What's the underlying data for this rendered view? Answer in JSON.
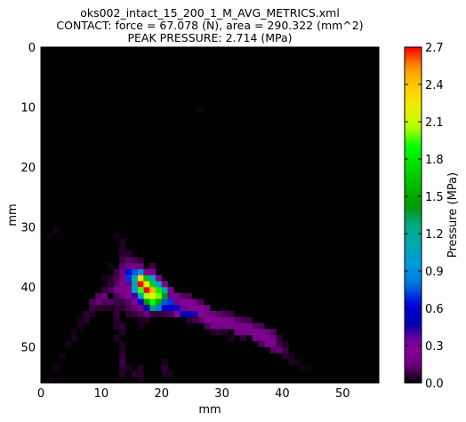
{
  "chart_data": {
    "type": "heatmap",
    "title_lines": [
      "oks002_intact_15_200_1_M_AVG_METRICS.xml",
      "CONTACT: force = 67.078 (N), area = 290.322 (mm^2)",
      "PEAK PRESSURE: 2.714 (MPa)"
    ],
    "xlabel": "mm",
    "ylabel": "mm",
    "colorbar_label": "Pressure (MPa)",
    "xlim": [
      0,
      56
    ],
    "ylim": [
      0,
      56
    ],
    "y_inverted": true,
    "x_ticks": [
      "0",
      "10",
      "20",
      "30",
      "40",
      "50"
    ],
    "y_ticks": [
      "0",
      "10",
      "20",
      "30",
      "40",
      "50"
    ],
    "colorbar_ticks": [
      "0.0",
      "0.3",
      "0.6",
      "0.9",
      "1.2",
      "1.5",
      "1.8",
      "2.1",
      "2.4",
      "2.7"
    ],
    "value_range": [
      0,
      2.7
    ],
    "colormap": "nipy_spectral",
    "grid": false,
    "cell_size_mm": 1,
    "cells": [
      [
        16,
        39,
        2.7
      ],
      [
        17,
        40,
        2.714
      ],
      [
        16,
        38,
        2.3
      ],
      [
        17,
        39,
        2.25
      ],
      [
        18,
        40,
        2.45
      ],
      [
        18,
        41,
        2.2
      ],
      [
        19,
        41,
        2.0
      ],
      [
        17,
        41,
        2.05
      ],
      [
        18,
        42,
        1.9
      ],
      [
        16,
        40,
        1.95
      ],
      [
        19,
        40,
        1.85
      ],
      [
        15,
        39,
        1.2
      ],
      [
        16,
        41,
        1.1
      ],
      [
        17,
        38,
        1.6
      ],
      [
        18,
        39,
        1.7
      ],
      [
        19,
        42,
        1.5
      ],
      [
        20,
        41,
        1.4
      ],
      [
        17,
        42,
        1.45
      ],
      [
        18,
        43,
        1.3
      ],
      [
        15,
        38,
        1.05
      ],
      [
        16,
        37,
        0.9
      ],
      [
        15,
        37,
        0.75
      ],
      [
        14,
        37,
        0.65
      ],
      [
        14,
        38,
        0.7
      ],
      [
        15,
        40,
        1.0
      ],
      [
        16,
        42,
        0.55
      ],
      [
        18,
        38,
        0.95
      ],
      [
        19,
        39,
        1.0
      ],
      [
        20,
        40,
        1.1
      ],
      [
        20,
        42,
        0.75
      ],
      [
        21,
        42,
        0.7
      ],
      [
        19,
        43,
        0.8
      ],
      [
        17,
        43,
        0.5
      ],
      [
        20,
        43,
        0.6
      ],
      [
        21,
        43,
        0.55
      ],
      [
        22,
        43,
        0.58
      ],
      [
        23,
        44,
        0.52
      ],
      [
        24,
        44,
        0.5
      ],
      [
        25,
        44,
        0.45
      ],
      [
        21,
        41,
        0.35
      ],
      [
        22,
        42,
        0.35
      ],
      [
        23,
        42,
        0.3
      ],
      [
        24,
        42,
        0.32
      ],
      [
        25,
        43,
        0.3
      ],
      [
        26,
        43,
        0.3
      ],
      [
        26,
        44,
        0.32
      ],
      [
        27,
        45,
        0.28
      ],
      [
        28,
        45,
        0.25
      ],
      [
        29,
        45,
        0.24
      ],
      [
        30,
        45,
        0.24
      ],
      [
        31,
        45,
        0.22
      ],
      [
        32,
        46,
        0.22
      ],
      [
        33,
        46,
        0.22
      ],
      [
        34,
        46,
        0.21
      ],
      [
        35,
        47,
        0.22
      ],
      [
        36,
        47,
        0.24
      ],
      [
        37,
        48,
        0.25
      ],
      [
        37,
        49,
        0.22
      ],
      [
        38,
        49,
        0.2
      ],
      [
        36,
        48,
        0.21
      ],
      [
        34,
        47,
        0.2
      ],
      [
        30,
        46,
        0.2
      ],
      [
        31,
        46,
        0.2
      ],
      [
        28,
        46,
        0.18
      ],
      [
        29,
        46,
        0.18
      ],
      [
        32,
        47,
        0.15
      ],
      [
        33,
        47,
        0.17
      ],
      [
        35,
        48,
        0.18
      ],
      [
        38,
        48,
        0.16
      ],
      [
        39,
        50,
        0.14
      ],
      [
        38,
        50,
        0.12
      ],
      [
        36,
        49,
        0.1
      ],
      [
        27,
        44,
        0.2
      ],
      [
        24,
        43,
        0.25
      ],
      [
        23,
        43,
        0.35
      ],
      [
        22,
        44,
        0.3
      ],
      [
        26,
        45,
        0.12
      ],
      [
        27,
        46,
        0.1
      ],
      [
        13,
        38,
        0.2
      ],
      [
        13,
        39,
        0.25
      ],
      [
        14,
        39,
        0.35
      ],
      [
        14,
        40,
        0.3
      ],
      [
        12,
        39,
        0.12
      ],
      [
        12,
        40,
        0.18
      ],
      [
        11,
        40,
        0.1
      ],
      [
        13,
        40,
        0.2
      ],
      [
        14,
        41,
        0.25
      ],
      [
        15,
        41,
        0.4
      ],
      [
        15,
        42,
        0.3
      ],
      [
        16,
        43,
        0.2
      ],
      [
        17,
        44,
        0.15
      ],
      [
        10,
        41,
        0.15
      ],
      [
        9,
        41,
        0.12
      ],
      [
        9,
        42,
        0.14
      ],
      [
        8,
        42,
        0.1
      ],
      [
        10,
        42,
        0.1
      ],
      [
        8,
        43,
        0.08
      ],
      [
        7,
        44,
        0.06
      ],
      [
        11,
        42,
        0.12
      ],
      [
        12,
        41,
        0.1
      ],
      [
        13,
        41,
        0.15
      ],
      [
        14,
        42,
        0.12
      ],
      [
        14,
        43,
        0.1
      ],
      [
        15,
        43,
        0.14
      ],
      [
        16,
        44,
        0.1
      ],
      [
        13,
        36,
        0.12
      ],
      [
        14,
        36,
        0.15
      ],
      [
        14,
        35,
        0.12
      ],
      [
        13,
        35,
        0.08
      ],
      [
        13,
        34,
        0.06
      ],
      [
        13,
        33,
        0.05
      ],
      [
        13,
        32,
        0.04
      ],
      [
        12,
        31,
        0.03
      ],
      [
        15,
        36,
        0.2
      ],
      [
        15,
        35,
        0.1
      ],
      [
        16,
        36,
        0.15
      ],
      [
        17,
        37,
        0.3
      ],
      [
        18,
        37,
        0.25
      ],
      [
        19,
        38,
        0.2
      ],
      [
        12,
        37,
        0.08
      ],
      [
        12,
        38,
        0.1
      ],
      [
        11,
        38,
        0.05
      ],
      [
        11,
        39,
        0.06
      ],
      [
        10,
        40,
        0.07
      ],
      [
        13,
        37,
        0.15
      ],
      [
        12,
        42,
        0.08
      ],
      [
        12,
        43,
        0.06
      ],
      [
        12,
        44,
        0.07
      ],
      [
        12,
        45,
        0.05
      ],
      [
        12,
        46,
        0.05
      ],
      [
        13,
        46,
        0.06
      ],
      [
        13,
        47,
        0.05
      ],
      [
        12,
        48,
        0.04
      ],
      [
        13,
        49,
        0.04
      ],
      [
        13,
        50,
        0.05
      ],
      [
        13,
        51,
        0.06
      ],
      [
        13,
        52,
        0.08
      ],
      [
        13,
        53,
        0.06
      ],
      [
        13,
        54,
        0.05
      ],
      [
        14,
        53,
        0.04
      ],
      [
        15,
        54,
        0.06
      ],
      [
        16,
        54,
        0.05
      ],
      [
        16,
        53,
        0.04
      ],
      [
        16,
        55,
        0.04
      ],
      [
        20,
        53,
        0.06
      ],
      [
        20,
        54,
        0.05
      ],
      [
        21,
        54,
        0.04
      ],
      [
        20,
        52,
        0.03
      ],
      [
        7,
        45,
        0.05
      ],
      [
        6,
        46,
        0.04
      ],
      [
        5,
        48,
        0.04
      ],
      [
        4,
        49,
        0.03
      ],
      [
        3,
        51,
        0.03
      ],
      [
        2,
        53,
        0.03
      ],
      [
        1,
        55,
        0.02
      ],
      [
        5,
        47,
        0.03
      ],
      [
        6,
        45,
        0.03
      ],
      [
        22,
        41,
        0.18
      ],
      [
        23,
        41,
        0.12
      ],
      [
        21,
        40,
        0.2
      ],
      [
        20,
        39,
        0.3
      ],
      [
        24,
        41,
        0.1
      ],
      [
        25,
        42,
        0.15
      ],
      [
        26,
        42,
        0.1
      ],
      [
        27,
        43,
        0.15
      ],
      [
        28,
        44,
        0.15
      ],
      [
        29,
        44,
        0.12
      ],
      [
        30,
        44,
        0.1
      ],
      [
        31,
        44,
        0.08
      ],
      [
        32,
        45,
        0.12
      ],
      [
        33,
        45,
        0.1
      ],
      [
        34,
        45,
        0.08
      ],
      [
        35,
        46,
        0.12
      ],
      [
        36,
        46,
        0.1
      ],
      [
        37,
        47,
        0.15
      ],
      [
        38,
        47,
        0.1
      ],
      [
        39,
        49,
        0.08
      ],
      [
        40,
        50,
        0.08
      ],
      [
        39,
        48,
        0.06
      ],
      [
        40,
        51,
        0.05
      ],
      [
        41,
        51,
        0.04
      ],
      [
        33,
        48,
        0.06
      ],
      [
        31,
        48,
        0.04
      ],
      [
        29,
        47,
        0.06
      ],
      [
        30,
        47,
        0.05
      ],
      [
        41,
        52,
        0.04
      ],
      [
        42,
        52,
        0.03
      ],
      [
        43,
        53,
        0.03
      ],
      [
        40,
        49,
        0.04
      ],
      [
        28,
        47,
        0.04
      ],
      [
        25,
        45,
        0.08
      ],
      [
        24,
        45,
        0.06
      ],
      [
        19,
        44,
        0.06
      ],
      [
        20,
        44,
        0.08
      ],
      [
        21,
        44,
        0.1
      ],
      [
        18,
        44,
        0.07
      ],
      [
        11,
        36,
        0.03
      ],
      [
        10,
        38,
        0.03
      ],
      [
        14,
        34,
        0.05
      ],
      [
        14,
        44,
        0.06
      ],
      [
        15,
        44,
        0.07
      ],
      [
        16,
        45,
        0.04
      ],
      [
        17,
        45,
        0.05
      ],
      [
        13,
        42,
        0.08
      ],
      [
        13,
        43,
        0.07
      ],
      [
        16,
        46,
        0.03
      ],
      [
        8,
        44,
        0.05
      ],
      [
        9,
        43,
        0.06
      ],
      [
        10,
        43,
        0.05
      ],
      [
        11,
        43,
        0.04
      ],
      [
        2,
        30,
        0.03
      ],
      [
        1,
        31,
        0.02
      ],
      [
        26,
        10,
        0.02
      ],
      [
        44,
        53,
        0.02
      ],
      [
        18,
        36,
        0.08
      ],
      [
        16,
        35,
        0.06
      ]
    ]
  }
}
